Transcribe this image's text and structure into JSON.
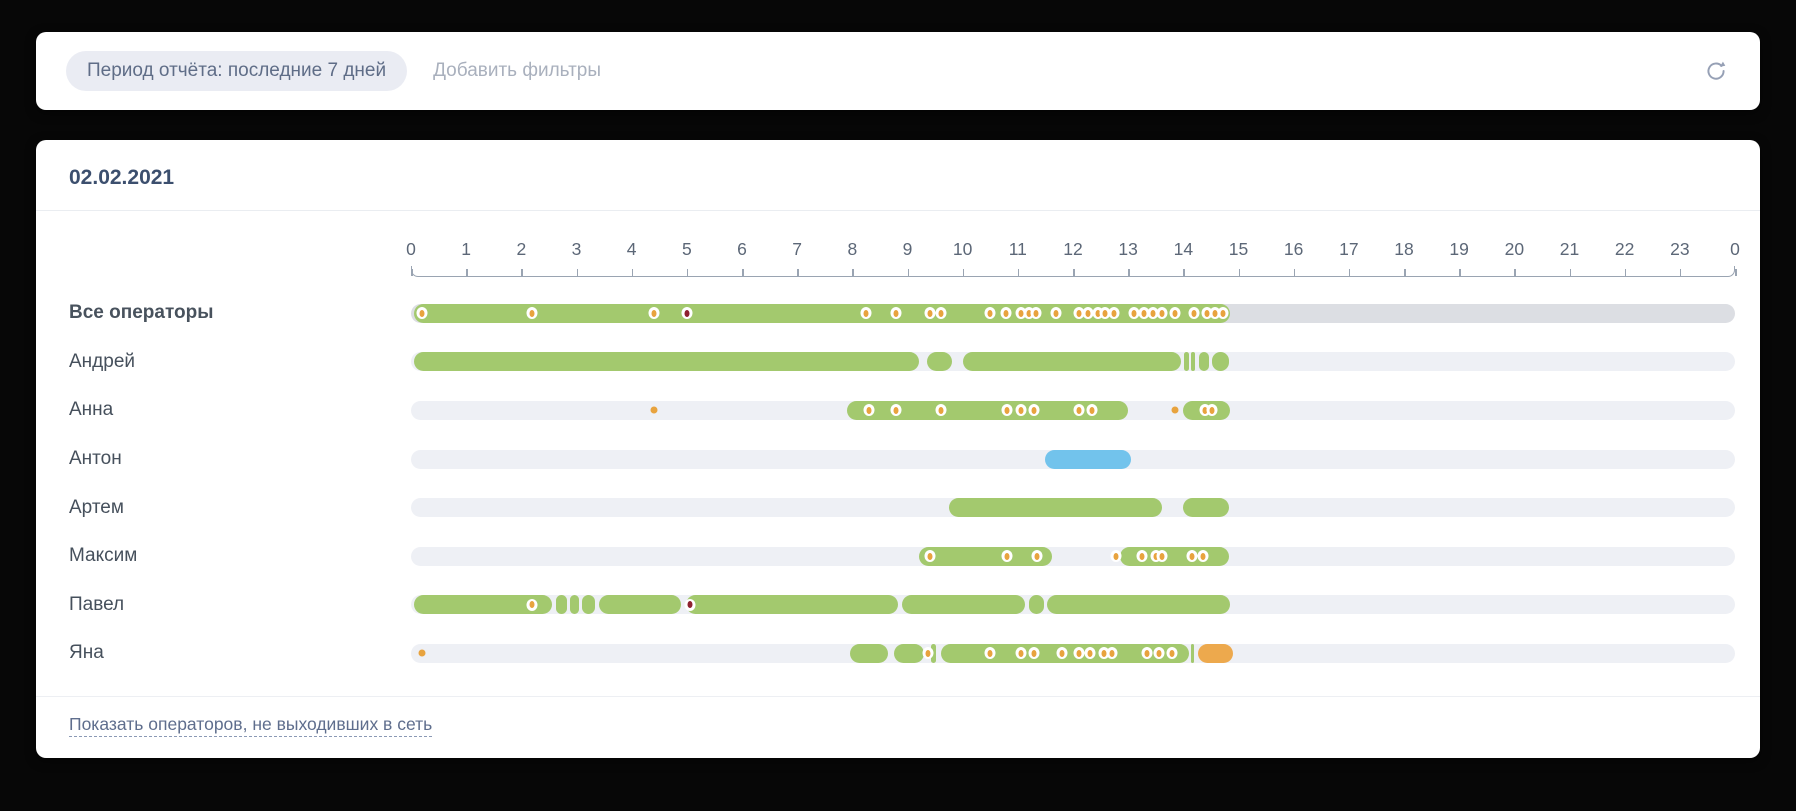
{
  "filter_bar": {
    "period_chip": "Период отчёта: последние 7 дней",
    "add_filters_placeholder": "Добавить фильтры"
  },
  "report": {
    "date": "02.02.2021",
    "show_offline_link": "Показать операторов, не выходивших в сеть"
  },
  "colors": {
    "online": "#a3c96e",
    "busy": "#72c3ec",
    "away": "#eda94d",
    "track": "#eef0f5",
    "track_total": "#dcdee3",
    "marker_dot": "#e8a33e",
    "marker_missed": "#8e2130",
    "axis": "#9aa4b2"
  },
  "chart_data": {
    "type": "timeline",
    "title": "02.02.2021",
    "axis": {
      "start": 0,
      "end": 24,
      "tick_labels": [
        "0",
        "1",
        "2",
        "3",
        "4",
        "5",
        "6",
        "7",
        "8",
        "9",
        "10",
        "11",
        "12",
        "13",
        "14",
        "15",
        "16",
        "17",
        "18",
        "19",
        "20",
        "21",
        "22",
        "23",
        "0"
      ]
    },
    "rows": [
      {
        "label": "Все операторы",
        "bold": true,
        "track": "total",
        "segments": [
          {
            "s": 0.05,
            "e": 14.85,
            "c": "online"
          }
        ],
        "markers": [
          {
            "t": 0.2,
            "k": "event"
          },
          {
            "t": 2.2,
            "k": "event"
          },
          {
            "t": 4.4,
            "k": "event"
          },
          {
            "t": 5.0,
            "k": "missed"
          },
          {
            "t": 8.25,
            "k": "event"
          },
          {
            "t": 8.8,
            "k": "event"
          },
          {
            "t": 9.4,
            "k": "event"
          },
          {
            "t": 9.6,
            "k": "event"
          },
          {
            "t": 10.5,
            "k": "event"
          },
          {
            "t": 10.78,
            "k": "event"
          },
          {
            "t": 11.05,
            "k": "event"
          },
          {
            "t": 11.2,
            "k": "event"
          },
          {
            "t": 11.33,
            "k": "event"
          },
          {
            "t": 11.7,
            "k": "event"
          },
          {
            "t": 12.1,
            "k": "event"
          },
          {
            "t": 12.28,
            "k": "event"
          },
          {
            "t": 12.45,
            "k": "event"
          },
          {
            "t": 12.58,
            "k": "event"
          },
          {
            "t": 12.75,
            "k": "event"
          },
          {
            "t": 13.1,
            "k": "event"
          },
          {
            "t": 13.28,
            "k": "event"
          },
          {
            "t": 13.45,
            "k": "event"
          },
          {
            "t": 13.62,
            "k": "event"
          },
          {
            "t": 13.85,
            "k": "event"
          },
          {
            "t": 14.2,
            "k": "event"
          },
          {
            "t": 14.42,
            "k": "event"
          },
          {
            "t": 14.58,
            "k": "event"
          },
          {
            "t": 14.72,
            "k": "event"
          }
        ]
      },
      {
        "label": "Андрей",
        "bold": false,
        "track": "normal",
        "segments": [
          {
            "s": 0.05,
            "e": 9.2,
            "c": "online"
          },
          {
            "s": 9.35,
            "e": 9.8,
            "c": "online"
          },
          {
            "s": 10.0,
            "e": 13.95,
            "c": "online"
          },
          {
            "s": 14.02,
            "e": 14.1,
            "c": "online"
          },
          {
            "s": 14.14,
            "e": 14.22,
            "c": "online"
          },
          {
            "s": 14.28,
            "e": 14.46,
            "c": "online"
          },
          {
            "s": 14.52,
            "e": 14.82,
            "c": "online"
          }
        ],
        "markers": []
      },
      {
        "label": "Анна",
        "bold": false,
        "track": "normal",
        "segments": [
          {
            "s": 7.9,
            "e": 13.0,
            "c": "online"
          },
          {
            "s": 14.0,
            "e": 14.85,
            "c": "online"
          }
        ],
        "markers": [
          {
            "t": 4.4,
            "k": "dot"
          },
          {
            "t": 8.3,
            "k": "event"
          },
          {
            "t": 8.8,
            "k": "event"
          },
          {
            "t": 9.6,
            "k": "event"
          },
          {
            "t": 10.8,
            "k": "event"
          },
          {
            "t": 11.05,
            "k": "event"
          },
          {
            "t": 11.3,
            "k": "event"
          },
          {
            "t": 12.1,
            "k": "event"
          },
          {
            "t": 12.35,
            "k": "event"
          },
          {
            "t": 13.85,
            "k": "dot"
          },
          {
            "t": 14.4,
            "k": "event"
          },
          {
            "t": 14.52,
            "k": "event"
          }
        ]
      },
      {
        "label": "Антон",
        "bold": false,
        "track": "normal",
        "segments": [
          {
            "s": 11.5,
            "e": 13.05,
            "c": "busy"
          }
        ],
        "markers": []
      },
      {
        "label": "Артем",
        "bold": false,
        "track": "normal",
        "segments": [
          {
            "s": 9.75,
            "e": 13.62,
            "c": "online"
          },
          {
            "s": 14.0,
            "e": 14.82,
            "c": "online"
          }
        ],
        "markers": []
      },
      {
        "label": "Максим",
        "bold": false,
        "track": "normal",
        "segments": [
          {
            "s": 9.2,
            "e": 11.62,
            "c": "online"
          },
          {
            "s": 12.85,
            "e": 14.82,
            "c": "online"
          }
        ],
        "markers": [
          {
            "t": 9.4,
            "k": "event"
          },
          {
            "t": 10.8,
            "k": "event"
          },
          {
            "t": 11.35,
            "k": "event"
          },
          {
            "t": 12.78,
            "k": "event"
          },
          {
            "t": 13.25,
            "k": "event"
          },
          {
            "t": 13.5,
            "k": "event"
          },
          {
            "t": 13.62,
            "k": "event"
          },
          {
            "t": 14.15,
            "k": "event"
          },
          {
            "t": 14.35,
            "k": "event"
          }
        ]
      },
      {
        "label": "Павел",
        "bold": false,
        "track": "normal",
        "segments": [
          {
            "s": 0.05,
            "e": 2.55,
            "c": "online"
          },
          {
            "s": 2.63,
            "e": 2.83,
            "c": "online"
          },
          {
            "s": 2.89,
            "e": 3.04,
            "c": "online"
          },
          {
            "s": 3.1,
            "e": 3.33,
            "c": "online"
          },
          {
            "s": 3.4,
            "e": 4.9,
            "c": "online"
          },
          {
            "s": 4.98,
            "e": 8.82,
            "c": "online"
          },
          {
            "s": 8.9,
            "e": 11.13,
            "c": "online"
          },
          {
            "s": 11.2,
            "e": 11.47,
            "c": "online"
          },
          {
            "s": 11.53,
            "e": 14.85,
            "c": "online"
          }
        ],
        "markers": [
          {
            "t": 2.2,
            "k": "event"
          },
          {
            "t": 5.05,
            "k": "missed"
          }
        ]
      },
      {
        "label": "Яна",
        "bold": false,
        "track": "normal",
        "segments": [
          {
            "s": 7.95,
            "e": 8.65,
            "c": "online"
          },
          {
            "s": 8.75,
            "e": 9.3,
            "c": "online"
          },
          {
            "s": 9.42,
            "e": 9.52,
            "c": "online"
          },
          {
            "s": 9.6,
            "e": 14.1,
            "c": "online"
          },
          {
            "s": 14.14,
            "e": 14.2,
            "c": "online"
          },
          {
            "s": 14.27,
            "e": 14.9,
            "c": "away"
          }
        ],
        "markers": [
          {
            "t": 0.2,
            "k": "dot"
          },
          {
            "t": 9.38,
            "k": "event"
          },
          {
            "t": 10.5,
            "k": "event"
          },
          {
            "t": 11.05,
            "k": "event"
          },
          {
            "t": 11.3,
            "k": "event"
          },
          {
            "t": 11.8,
            "k": "event"
          },
          {
            "t": 12.1,
            "k": "event"
          },
          {
            "t": 12.3,
            "k": "event"
          },
          {
            "t": 12.57,
            "k": "event"
          },
          {
            "t": 12.7,
            "k": "event"
          },
          {
            "t": 13.35,
            "k": "event"
          },
          {
            "t": 13.55,
            "k": "event"
          },
          {
            "t": 13.8,
            "k": "event"
          }
        ]
      }
    ]
  }
}
